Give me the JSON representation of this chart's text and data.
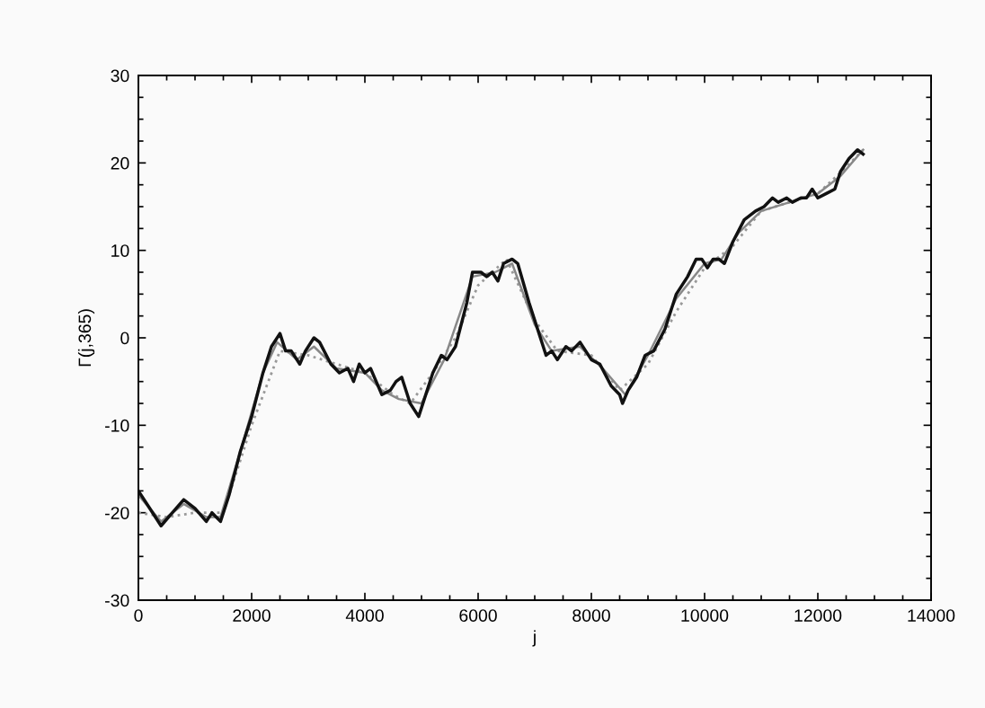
{
  "chart_data": {
    "type": "line",
    "xlabel": "j",
    "ylabel": "Γ(j,365)",
    "xlim": [
      0,
      14000
    ],
    "ylim": [
      -30,
      30
    ],
    "xticks": [
      0,
      {
        "value": 500,
        "label": null
      },
      {
        "value": 1000,
        "label": null
      },
      {
        "value": 1500,
        "label": null
      },
      2000,
      {
        "value": 2500,
        "label": null
      },
      {
        "value": 3000,
        "label": null
      },
      {
        "value": 3500,
        "label": null
      },
      4000,
      {
        "value": 4500,
        "label": null
      },
      {
        "value": 5000,
        "label": null
      },
      {
        "value": 5500,
        "label": null
      },
      6000,
      {
        "value": 6500,
        "label": null
      },
      {
        "value": 7000,
        "label": null
      },
      {
        "value": 7500,
        "label": null
      },
      8000,
      {
        "value": 8500,
        "label": null
      },
      {
        "value": 9000,
        "label": null
      },
      {
        "value": 9500,
        "label": null
      },
      10000,
      {
        "value": 10500,
        "label": null
      },
      {
        "value": 11000,
        "label": null
      },
      {
        "value": 11500,
        "label": null
      },
      12000,
      {
        "value": 12500,
        "label": null
      },
      {
        "value": 13000,
        "label": null
      },
      {
        "value": 13500,
        "label": null
      },
      14000
    ],
    "yticks": [
      -30,
      {
        "value": -27.5,
        "label": null
      },
      {
        "value": -25,
        "label": null
      },
      {
        "value": -22.5,
        "label": null
      },
      -20,
      {
        "value": -17.5,
        "label": null
      },
      {
        "value": -15,
        "label": null
      },
      {
        "value": -12.5,
        "label": null
      },
      -10,
      {
        "value": -7.5,
        "label": null
      },
      {
        "value": -5,
        "label": null
      },
      {
        "value": -2.5,
        "label": null
      },
      0,
      {
        "value": 2.5,
        "label": null
      },
      {
        "value": 5,
        "label": null
      },
      {
        "value": 7.5,
        "label": null
      },
      10,
      {
        "value": 12.5,
        "label": null
      },
      {
        "value": 15,
        "label": null
      },
      {
        "value": 17.5,
        "label": null
      },
      20,
      {
        "value": 22.5,
        "label": null
      },
      {
        "value": 25,
        "label": null
      },
      {
        "value": 27.5,
        "label": null
      },
      30
    ],
    "grid": false,
    "legend": false,
    "series": [
      {
        "color": "#999999",
        "line_style": "dotted",
        "x": [
          0,
          500,
          1000,
          1500,
          2000,
          2500,
          3000,
          3500,
          4000,
          4500,
          4800,
          5200,
          5600,
          6000,
          6500,
          7000,
          7400,
          8000,
          8500,
          9000,
          9500,
          10000,
          10500,
          11000,
          11500,
          12000,
          12500,
          12800
        ],
        "values": [
          -20,
          -20.5,
          -20,
          -20,
          -10,
          -1.5,
          -2,
          -3,
          -4,
          -6.5,
          -7.5,
          -4,
          0,
          6,
          9,
          2,
          -1.5,
          -2,
          -6,
          -3,
          3,
          8,
          10.5,
          14.5,
          15.5,
          16.5,
          19.5,
          21.5
        ]
      },
      {
        "color": "#888888",
        "line_style": "solid",
        "x": [
          0,
          400,
          800,
          1200,
          1450,
          1800,
          2200,
          2450,
          2800,
          3100,
          3500,
          4000,
          4300,
          4600,
          5000,
          5400,
          5900,
          6300,
          6600,
          7000,
          7300,
          7800,
          8200,
          8600,
          9000,
          9500,
          10000,
          10300,
          10600,
          11000,
          11500,
          12000,
          12400,
          12800
        ],
        "values": [
          -18,
          -21,
          -19,
          -20.5,
          -20.5,
          -13,
          -4,
          -0.5,
          -2.5,
          -1,
          -3.5,
          -4,
          -6,
          -7,
          -7.5,
          -2.5,
          7,
          7.5,
          8.5,
          1.5,
          -1.5,
          -1,
          -3.5,
          -6.5,
          -2,
          4.5,
          8.5,
          9,
          12,
          14.5,
          15.5,
          16.5,
          18.5,
          21.5
        ]
      },
      {
        "color": "#111111",
        "line_style": "solid",
        "x": [
          0,
          200,
          400,
          600,
          800,
          1000,
          1200,
          1300,
          1450,
          1600,
          1800,
          2000,
          2200,
          2350,
          2500,
          2600,
          2700,
          2850,
          2950,
          3100,
          3200,
          3400,
          3550,
          3700,
          3800,
          3900,
          4000,
          4100,
          4200,
          4300,
          4450,
          4550,
          4650,
          4800,
          4950,
          5050,
          5200,
          5350,
          5450,
          5600,
          5800,
          5900,
          6050,
          6150,
          6250,
          6350,
          6450,
          6600,
          6700,
          6900,
          7100,
          7200,
          7300,
          7400,
          7550,
          7650,
          7800,
          7900,
          8000,
          8150,
          8350,
          8500,
          8550,
          8650,
          8800,
          8950,
          9100,
          9300,
          9500,
          9700,
          9850,
          9950,
          10050,
          10150,
          10250,
          10350,
          10500,
          10700,
          10900,
          11050,
          11200,
          11300,
          11450,
          11550,
          11700,
          11800,
          11900,
          12000,
          12150,
          12300,
          12400,
          12550,
          12700,
          12800
        ],
        "values": [
          -17.5,
          -19.5,
          -21.5,
          -20,
          -18.5,
          -19.5,
          -21,
          -20,
          -21,
          -18,
          -13,
          -9,
          -4,
          -1,
          0.5,
          -1.5,
          -1.5,
          -3,
          -1.5,
          0,
          -0.5,
          -3,
          -4,
          -3.5,
          -5,
          -3,
          -4,
          -3.5,
          -5,
          -6.5,
          -6,
          -5,
          -4.5,
          -7.5,
          -9,
          -7,
          -4,
          -2,
          -2.5,
          -1,
          4,
          7.5,
          7.5,
          7,
          7.5,
          6.5,
          8.5,
          9,
          8.5,
          4,
          0,
          -2,
          -1.5,
          -2.5,
          -1,
          -1.5,
          -0.5,
          -1.5,
          -2.5,
          -3,
          -5.5,
          -6.5,
          -7.5,
          -6,
          -4.5,
          -2,
          -1.5,
          1,
          5,
          7,
          9,
          9,
          8,
          9,
          9,
          8.5,
          11,
          13.5,
          14.5,
          15,
          16,
          15.5,
          16,
          15.5,
          16,
          16,
          17,
          16,
          16.5,
          17,
          19,
          20.5,
          21.5,
          21
        ]
      }
    ]
  }
}
